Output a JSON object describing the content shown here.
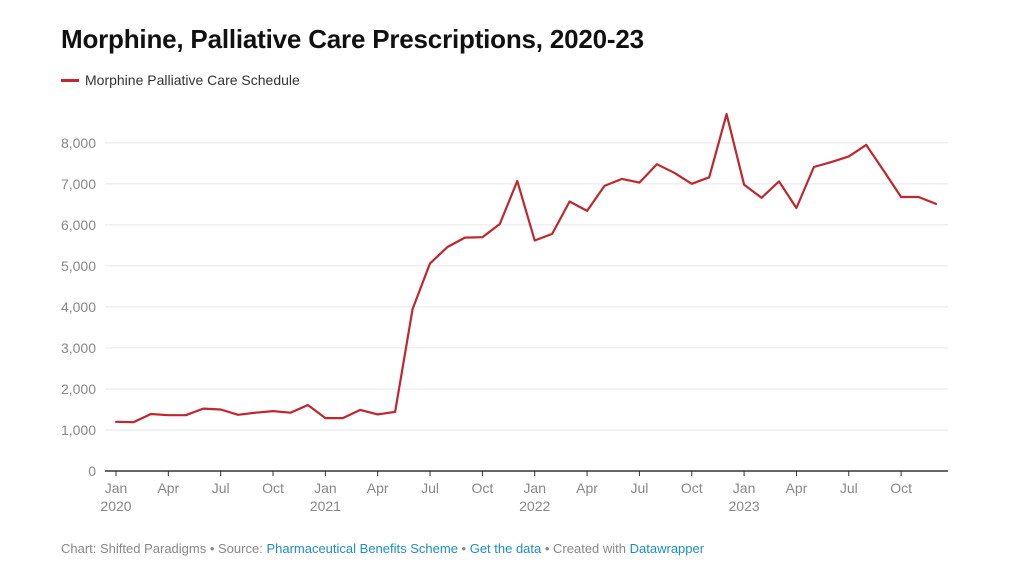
{
  "title": "Morphine, Palliative Care Prescriptions, 2020-23",
  "colors": {
    "series": "#c0262d",
    "grid": "#e6e6e6",
    "axis": "#333333",
    "link": "#1b8ec2"
  },
  "footer": {
    "prefix": "Chart: Shifted Paradigms • Source: ",
    "source": "Pharmaceutical Benefits Scheme",
    "sep1": " • ",
    "get_data": "Get the data",
    "sep2": " • Created with ",
    "tool": "Datawrapper"
  },
  "chart_data": {
    "type": "line",
    "title": "Morphine, Palliative Care Prescriptions, 2020-23",
    "xlabel": "",
    "ylabel": "",
    "ylim": [
      0,
      8800
    ],
    "yticks": [
      {
        "value": 0,
        "label": "0"
      },
      {
        "value": 1000,
        "label": "1,000"
      },
      {
        "value": 2000,
        "label": "2,000"
      },
      {
        "value": 3000,
        "label": "3,000"
      },
      {
        "value": 4000,
        "label": "4,000"
      },
      {
        "value": 5000,
        "label": "5,000"
      },
      {
        "value": 6000,
        "label": "6,000"
      },
      {
        "value": 7000,
        "label": "7,000"
      },
      {
        "value": 8000,
        "label": "8,000"
      }
    ],
    "xticks": [
      {
        "date": "2020-01",
        "label": "Jan",
        "year": "2020"
      },
      {
        "date": "2020-04",
        "label": "Apr",
        "year": ""
      },
      {
        "date": "2020-07",
        "label": "Jul",
        "year": ""
      },
      {
        "date": "2020-10",
        "label": "Oct",
        "year": ""
      },
      {
        "date": "2021-01",
        "label": "Jan",
        "year": "2021"
      },
      {
        "date": "2021-04",
        "label": "Apr",
        "year": ""
      },
      {
        "date": "2021-07",
        "label": "Jul",
        "year": ""
      },
      {
        "date": "2021-10",
        "label": "Oct",
        "year": ""
      },
      {
        "date": "2022-01",
        "label": "Jan",
        "year": "2022"
      },
      {
        "date": "2022-04",
        "label": "Apr",
        "year": ""
      },
      {
        "date": "2022-07",
        "label": "Jul",
        "year": ""
      },
      {
        "date": "2022-10",
        "label": "Oct",
        "year": ""
      },
      {
        "date": "2023-01",
        "label": "Jan",
        "year": "2023"
      },
      {
        "date": "2023-04",
        "label": "Apr",
        "year": ""
      },
      {
        "date": "2023-07",
        "label": "Jul",
        "year": ""
      },
      {
        "date": "2023-10",
        "label": "Oct",
        "year": ""
      }
    ],
    "grid": true,
    "legend": "top-left",
    "series": [
      {
        "name": "Morphine Palliative Care Schedule",
        "x": [
          "2020-01",
          "2020-02",
          "2020-03",
          "2020-04",
          "2020-05",
          "2020-06",
          "2020-07",
          "2020-08",
          "2020-09",
          "2020-10",
          "2020-11",
          "2020-12",
          "2021-01",
          "2021-02",
          "2021-03",
          "2021-04",
          "2021-05",
          "2021-06",
          "2021-07",
          "2021-08",
          "2021-09",
          "2021-10",
          "2021-11",
          "2021-12",
          "2022-01",
          "2022-02",
          "2022-03",
          "2022-04",
          "2022-05",
          "2022-06",
          "2022-07",
          "2022-08",
          "2022-09",
          "2022-10",
          "2022-11",
          "2022-12",
          "2023-01",
          "2023-02",
          "2023-03",
          "2023-04",
          "2023-05",
          "2023-06",
          "2023-07",
          "2023-08",
          "2023-09",
          "2023-10",
          "2023-11",
          "2023-12"
        ],
        "values": [
          1200,
          1190,
          1390,
          1360,
          1360,
          1520,
          1500,
          1370,
          1420,
          1460,
          1420,
          1610,
          1290,
          1290,
          1490,
          1380,
          1440,
          3950,
          5060,
          5460,
          5690,
          5700,
          6020,
          7070,
          5620,
          5780,
          6570,
          6340,
          6950,
          7120,
          7030,
          7480,
          7270,
          7000,
          7160,
          8700,
          6980,
          6660,
          7060,
          6410,
          7410,
          7530,
          7670,
          7950,
          7320,
          6680,
          6680,
          6510
        ]
      }
    ]
  }
}
